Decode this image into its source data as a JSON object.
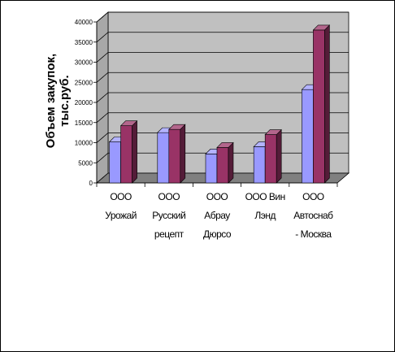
{
  "chart_data": {
    "type": "bar",
    "subtype": "3d-clustered-column",
    "title": "",
    "xlabel": "",
    "ylabel": "Объем закупок, тыс.руб.",
    "ylim": [
      0,
      40000
    ],
    "yticks": [
      "0",
      "5000",
      "10000",
      "15000",
      "20000",
      "25000",
      "30000",
      "35000",
      "40000"
    ],
    "grid": true,
    "legend": "none",
    "categories": [
      [
        "ООО",
        "Урожай"
      ],
      [
        "ООО",
        "Русский",
        "рецепт"
      ],
      [
        "ООО",
        "Абрау",
        "Дюрсо"
      ],
      [
        "ООО Вин",
        "Лэнд"
      ],
      [
        "ООО",
        "Автоснаб",
        "- Москва"
      ]
    ],
    "series": [
      {
        "values": [
          10200,
          12500,
          7200,
          9000,
          23200
        ],
        "color": "#9999ff"
      },
      {
        "values": [
          14200,
          13300,
          8800,
          12000,
          38000
        ],
        "color": "#993366"
      }
    ],
    "colors": {
      "wall": "#c0c0c0",
      "floor": "#808080",
      "grid": "#000000"
    }
  }
}
